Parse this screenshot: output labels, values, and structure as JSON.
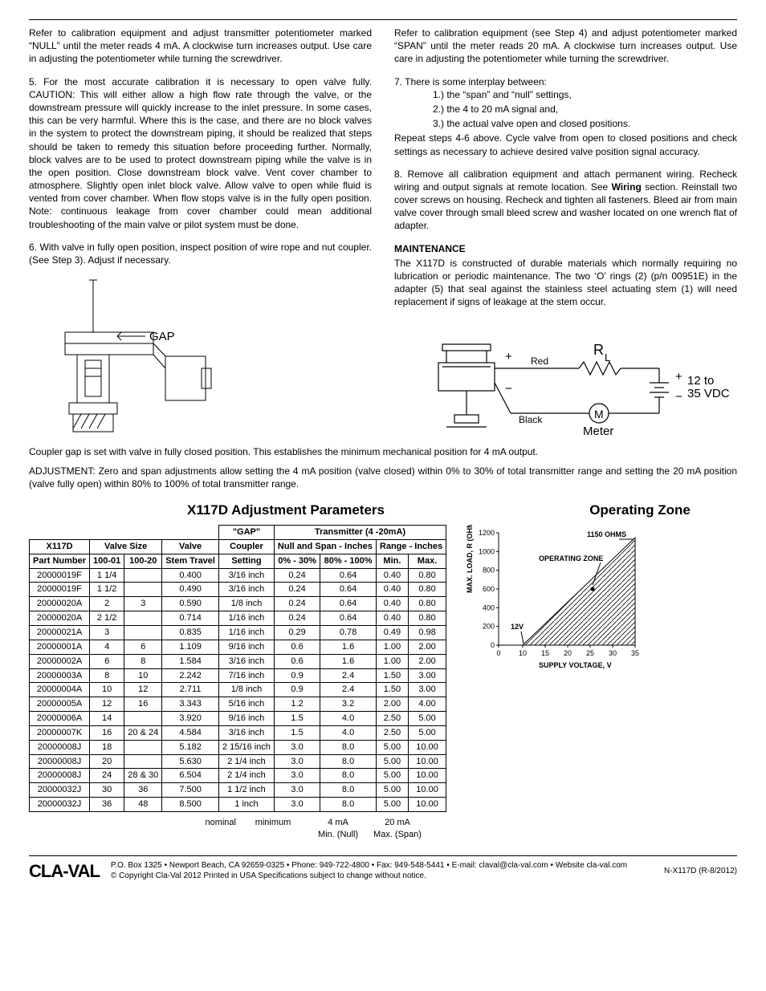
{
  "left": {
    "p1": "Refer to calibration equipment and adjust transmitter potentiometer marked “NULL” until the meter reads 4 mA.  A clockwise turn increases output.  Use care in adjusting the potentiometer while turning the screwdriver.",
    "p2": "5.  For the most accurate calibration it is necessary to open valve fully.  CAUTION:  This will either allow a high flow rate through the valve, or the downstream pressure will quickly increase to the inlet pressure.  In some cases, this can be very harmful.  Where this is the case, and there are no block valves in the system to protect the downstream piping, it should be realized that steps should be taken to remedy this situation before proceeding further.  Normally, block valves are to be used to protect downstream piping while the valve is in the open position.  Close downstream block valve.  Vent cover chamber to atmosphere.  Slightly open inlet block valve.  Allow valve to open while fluid is vented from cover chamber.  When flow stops valve is in the fully open position.  Note: continuous leakage from cover chamber could mean additional troubleshooting of the main valve or pilot system must be done.",
    "p3": "6.  With valve in fully open position, inspect position of wire rope and nut coupler. (See Step 3).  Adjust if necessary."
  },
  "right": {
    "p1": "Refer to calibration equipment (see Step 4) and adjust potentiometer marked “SPAN” until the meter reads 20 mA.  A clockwise turn increases output.  Use care in adjusting the potentiometer while turning the screwdriver.",
    "p2": "7. There is some interplay between:",
    "li1": "1.)  the “span” and “null” settings,",
    "li2": "2.)  the 4 to 20 mA signal and,",
    "li3": "3.)  the actual valve open and closed positions.",
    "p3": "Repeat steps 4-6 above. Cycle valve from open to closed positions and check settings as necessary to achieve desired valve position signal accuracy.",
    "p4_a": "8.   Remove all calibration equipment and attach permanent wiring. Recheck wiring and output signals at remote location. See ",
    "p4_b": "Wiring",
    "p4_c": " section. Reinstall two cover screws on housing. Recheck and tighten all fasteners. Bleed air from main valve cover through small bleed screw and washer located on one wrench flat of adapter.",
    "maint_title": "MAINTENANCE",
    "maint": "The X117D is constructed of durable materials which normally requiring no lubrication or periodic maintenance. The two ‘O’ rings (2) (p/n 00951E) in the adapter (5) that seal against the stainless steel actuating stem (1) will need replacement if signs of leakage at the stem occur."
  },
  "diag1": {
    "gap": "GAP"
  },
  "diag2": {
    "red": "Red",
    "black": "Black",
    "rl_r": "R",
    "rl_l": "L",
    "v": "12 to",
    "v2": "35 VDC",
    "m": "M",
    "meter": "Meter",
    "plus": "+",
    "minus": "−"
  },
  "full": {
    "p1": "Coupler gap is set with valve in fully closed position. This establishes the minimum mechanical position for 4 mA output.",
    "p2": "ADJUSTMENT: Zero and span adjustments allow setting the 4 mA position (valve closed) within 0% to 30% of total transmitter range and setting the 20 mA position (valve fully open) within 80% to 100% of total transmitter range."
  },
  "titles": {
    "left": "X117D Adjustment Parameters",
    "right": "Operating Zone"
  },
  "table": {
    "h_gap": "\"GAP\"",
    "h_tx": "Transmitter (4 -20mA)",
    "h_x117d": "X117D",
    "h_valve_size": "Valve Size",
    "h_valve": "Valve",
    "h_coupler": "Coupler",
    "h_nullspan": "Null and Span - Inches",
    "h_range": "Range - Inches",
    "h_pn": "Part Number",
    "h_10001": "100-01",
    "h_10020": "100-20",
    "h_stem": "Stem Travel",
    "h_setting": "Setting",
    "h_030": "0% - 30%",
    "h_80100": "80% - 100%",
    "h_min": "Min.",
    "h_max": "Max.",
    "rows": [
      [
        "20000019F",
        "1 1/4",
        "",
        "0.400",
        "3/16 inch",
        "0.24",
        "0.64",
        "0.40",
        "0.80"
      ],
      [
        "20000019F",
        "1 1/2",
        "",
        "0.490",
        "3/16 inch",
        "0.24",
        "0.64",
        "0.40",
        "0.80"
      ],
      [
        "20000020A",
        "2",
        "3",
        "0.590",
        "1/8 inch",
        "0.24",
        "0.64",
        "0.40",
        "0.80"
      ],
      [
        "20000020A",
        "2 1/2",
        "",
        "0.714",
        "1/16 inch",
        "0.24",
        "0.64",
        "0.40",
        "0.80"
      ],
      [
        "20000021A",
        "3",
        "",
        "0.835",
        "1/16 inch",
        "0.29",
        "0.78",
        "0.49",
        "0.98"
      ],
      [
        "20000001A",
        "4",
        "6",
        "1.109",
        "9/16 inch",
        "0.6",
        "1.6",
        "1.00",
        "2.00"
      ],
      [
        "20000002A",
        "6",
        "8",
        "1.584",
        "3/16 inch",
        "0.6",
        "1.6",
        "1.00",
        "2.00"
      ],
      [
        "20000003A",
        "8",
        "10",
        "2.242",
        "7/16 inch",
        "0.9",
        "2.4",
        "1.50",
        "3.00"
      ],
      [
        "20000004A",
        "10",
        "12",
        "2.711",
        "1/8 inch",
        "0.9",
        "2.4",
        "1.50",
        "3.00"
      ],
      [
        "20000005A",
        "12",
        "16",
        "3.343",
        "5/16 inch",
        "1.2",
        "3.2",
        "2.00",
        "4.00"
      ],
      [
        "20000006A",
        "14",
        "",
        "3.920",
        "9/16 inch",
        "1.5",
        "4.0",
        "2.50",
        "5.00"
      ],
      [
        "20000007K",
        "16",
        "20 & 24",
        "4.584",
        "3/16 inch",
        "1.5",
        "4.0",
        "2.50",
        "5.00"
      ],
      [
        "20000008J",
        "18",
        "",
        "5.182",
        "2 15/16 inch",
        "3.0",
        "8.0",
        "5.00",
        "10.00"
      ],
      [
        "20000008J",
        "20",
        "",
        "5.630",
        "2 1/4 inch",
        "3.0",
        "8.0",
        "5.00",
        "10.00"
      ],
      [
        "20000008J",
        "24",
        "28 & 30",
        "6.504",
        "2 1/4 inch",
        "3.0",
        "8.0",
        "5.00",
        "10.00"
      ],
      [
        "20000032J",
        "30",
        "36",
        "7.500",
        "1 1/2 inch",
        "3.0",
        "8.0",
        "5.00",
        "10.00"
      ],
      [
        "20000032J",
        "36",
        "48",
        "8.500",
        "1 inch",
        "3.0",
        "8.0",
        "5.00",
        "10.00"
      ]
    ],
    "f_nominal": "nominal",
    "f_minimum": "minimum",
    "f_4ma": "4 mA",
    "f_20ma": "20 mA",
    "f_minnull": "Min. (Null)",
    "f_maxspan": "Max. (Span)"
  },
  "chart": {
    "ylabel": "MAX. LOAD, R (OHMS)",
    "xlabel": "SUPPLY VOLTAGE, V",
    "yticks": [
      "0",
      "200",
      "400",
      "600",
      "800",
      "1000",
      "1200"
    ],
    "xticks": [
      "0",
      "10",
      "15",
      "20",
      "25",
      "30",
      "35"
    ],
    "ohms_label": "1150 OHMS",
    "opzone": "OPERATING ZONE",
    "v12": "12V",
    "line_color": "#000000",
    "hatch_color": "#000000",
    "bg": "#ffffff"
  },
  "footer": {
    "logo": "CLA-VAL",
    "line1": "P.O. Box 1325 • Newport Beach, CA 92659-0325 • Phone: 949-722-4800 • Fax: 949-548-5441 • E-mail: claval@cla-val.com • Website cla-val.com",
    "line2": "© Copyright Cla-Val 2012  Printed in USA   Specifications subject to change without notice.",
    "code": "N-X117D  (R-8/2012)"
  }
}
